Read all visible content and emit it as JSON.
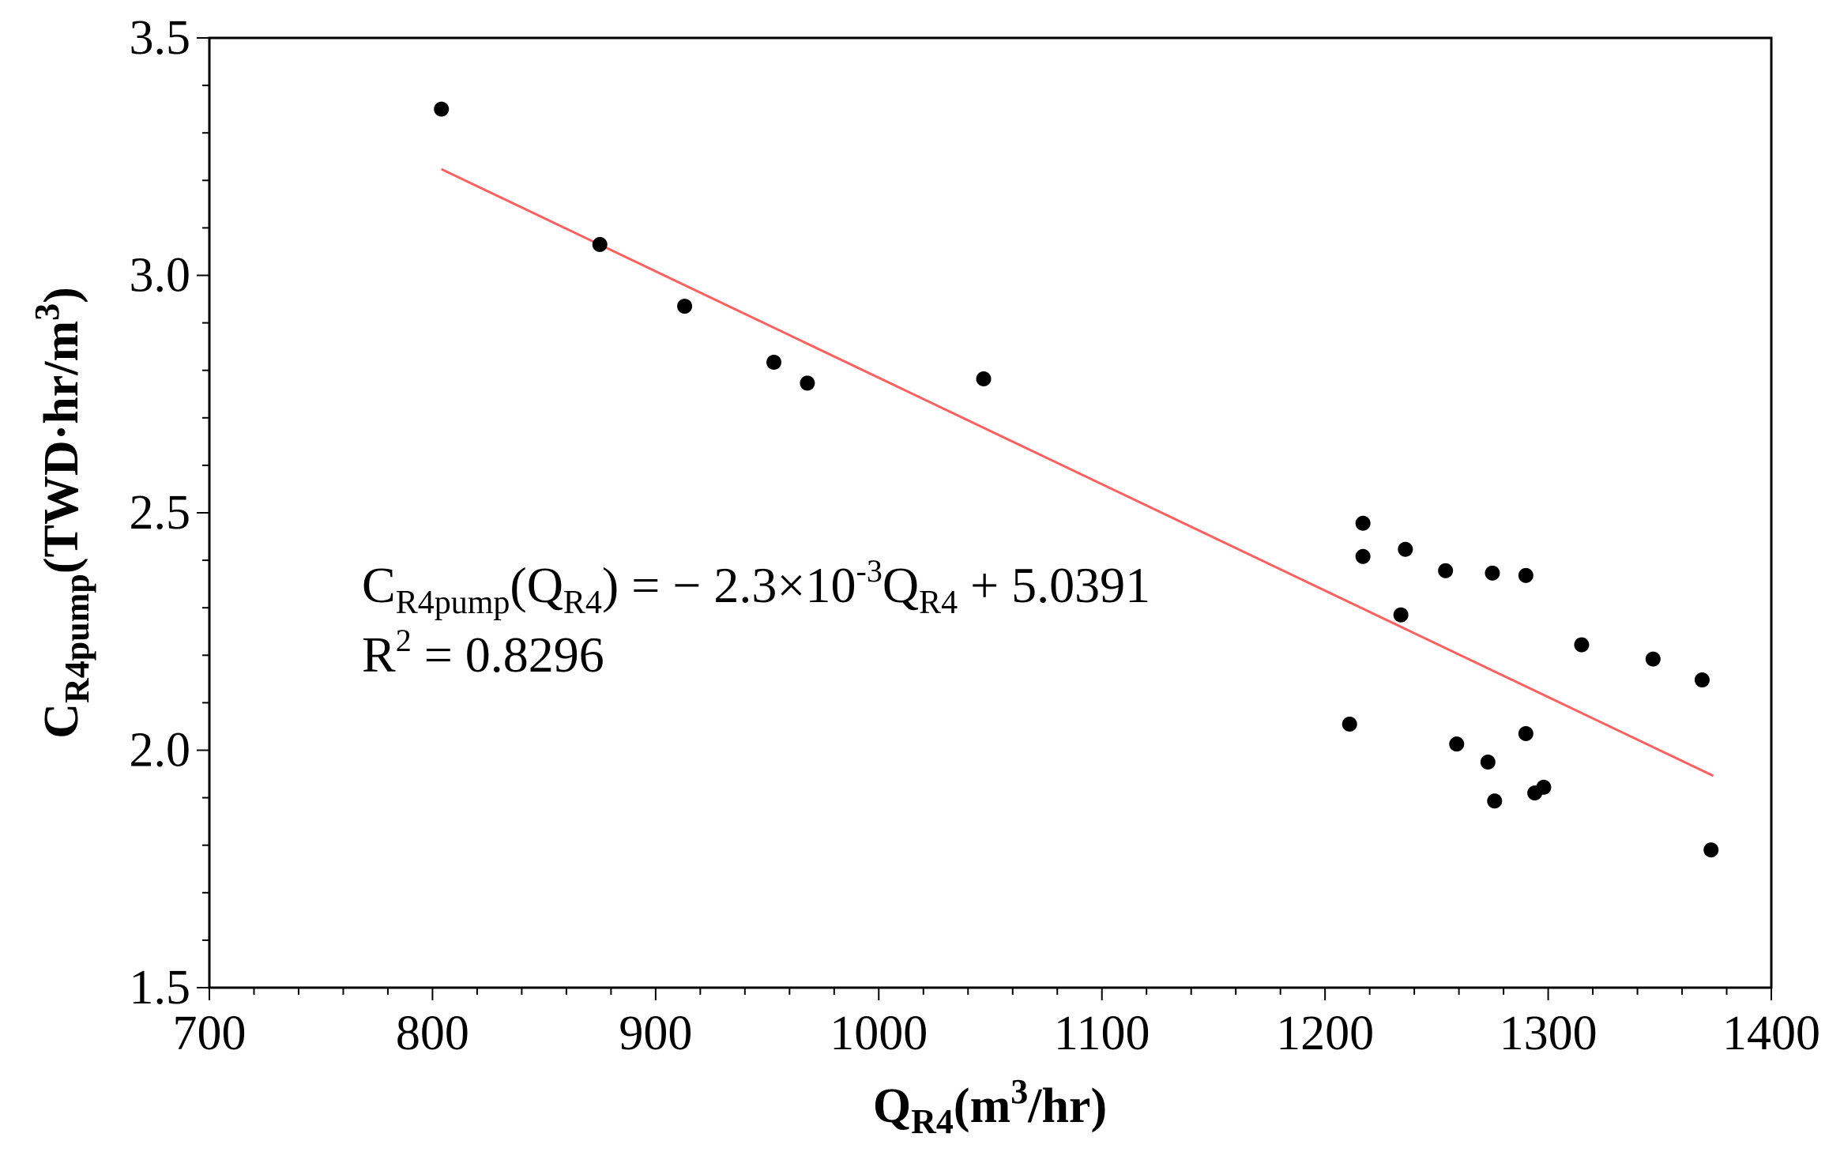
{
  "chart_data": {
    "type": "scatter",
    "title": "",
    "xlabel": {
      "base": "Q",
      "sub": "R4",
      "unit_pre": "(m",
      "unit_sup": "3",
      "unit_post": "/hr)"
    },
    "ylabel": {
      "base": "C",
      "sub": "R4pump",
      "unit_pre": "(TWD·hr/m",
      "unit_sup": "3",
      "unit_post": ")"
    },
    "xlim": [
      700,
      1400
    ],
    "ylim": [
      1.5,
      3.5
    ],
    "xticks": [
      700,
      800,
      900,
      1000,
      1100,
      1200,
      1300,
      1400
    ],
    "xtick_labels": [
      "700",
      "800",
      "900",
      "1000",
      "1100",
      "1200",
      "1300",
      "1400"
    ],
    "yticks": [
      1.5,
      2.0,
      2.5,
      3.0,
      3.5
    ],
    "ytick_labels": [
      "1.5",
      "2.0",
      "2.5",
      "3.0",
      "3.5"
    ],
    "x_minor_step": 20,
    "y_minor_step": 0.1,
    "grid": false,
    "series": [
      {
        "name": "data",
        "marker": "circle",
        "color": "#000000",
        "points": [
          [
            804,
            3.35
          ],
          [
            875,
            3.065
          ],
          [
            913,
            2.935
          ],
          [
            953,
            2.817
          ],
          [
            968,
            2.773
          ],
          [
            1047,
            2.782
          ],
          [
            1217,
            2.478
          ],
          [
            1217,
            2.408
          ],
          [
            1236,
            2.423
          ],
          [
            1254,
            2.378
          ],
          [
            1275,
            2.373
          ],
          [
            1290,
            2.368
          ],
          [
            1234,
            2.285
          ],
          [
            1315,
            2.222
          ],
          [
            1347,
            2.192
          ],
          [
            1369,
            2.148
          ],
          [
            1211,
            2.055
          ],
          [
            1259,
            2.013
          ],
          [
            1273,
            1.975
          ],
          [
            1290,
            2.035
          ],
          [
            1276,
            1.893
          ],
          [
            1294,
            1.91
          ],
          [
            1298,
            1.922
          ],
          [
            1373,
            1.79
          ]
        ]
      },
      {
        "name": "fit",
        "type": "line",
        "color": "#ff6060",
        "x": [
          804,
          1374
        ],
        "y": [
          3.2237,
          1.9461
        ]
      }
    ],
    "annotations": {
      "equation": {
        "c": "C",
        "c_sub": "R4pump",
        "open": "(Q",
        "open_sub": "R4",
        "mid": ") = − 2.3×10",
        "exp": "-3",
        "q": "Q",
        "q_sub": "R4",
        "tail": " + 5.0391"
      },
      "r2": {
        "r": "R",
        "sup": "2",
        "rest": " = 0.8296"
      }
    }
  }
}
